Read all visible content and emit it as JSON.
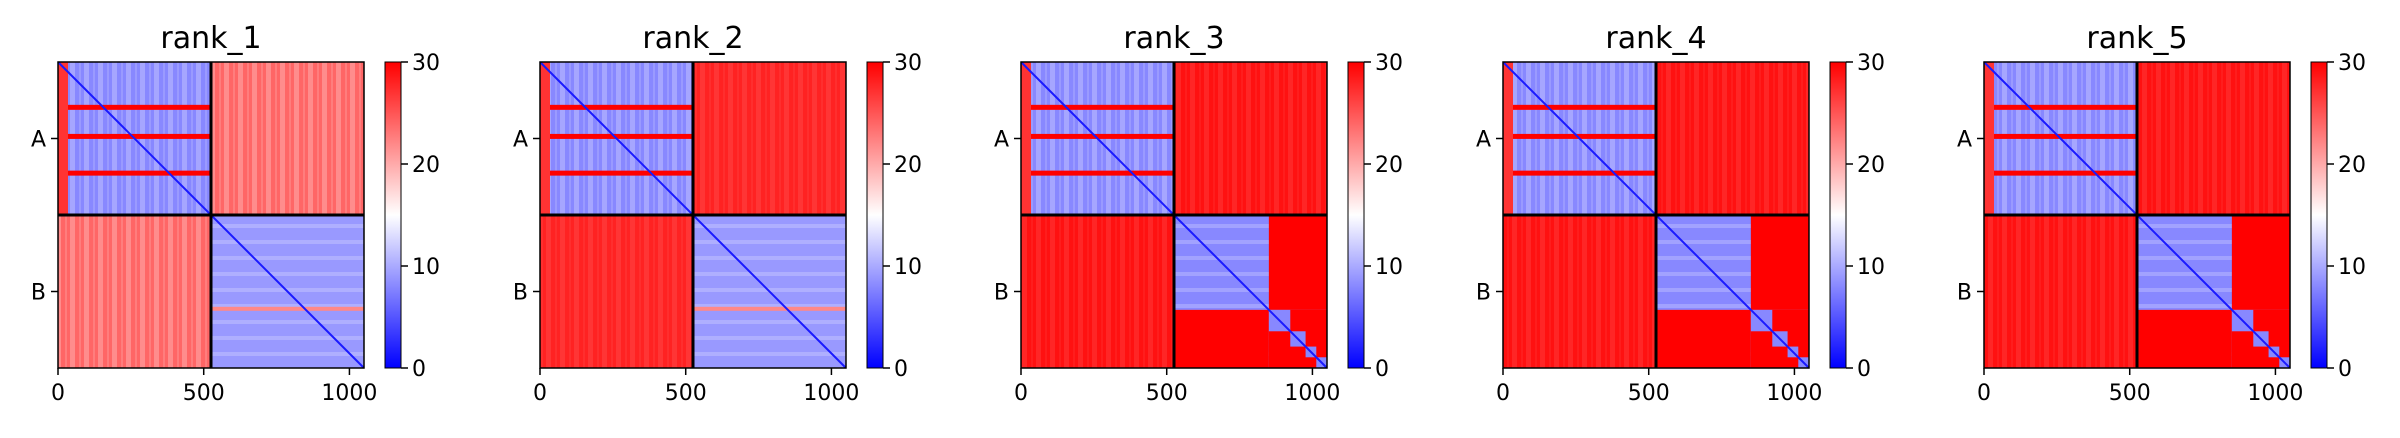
{
  "chart_data": {
    "type": "heatmap",
    "colormap": {
      "low": "#0000ff",
      "mid": "#ffffff",
      "high": "#ff0000",
      "vmin": 0,
      "vmax": 30
    },
    "colorbar_ticks": [
      "0",
      "10",
      "20",
      "30"
    ],
    "x_ticks": [
      {
        "label": "0",
        "value": 0
      },
      {
        "label": "500",
        "value": 500
      },
      {
        "label": "1000",
        "value": 1000
      }
    ],
    "x_range": [
      0,
      1050
    ],
    "chain_boundary": 525,
    "chain_labels": [
      "A",
      "B"
    ],
    "panels": [
      {
        "title": "rank_1",
        "intra_A": 8,
        "intra_B": 9,
        "inter": 24,
        "B_tail_break": false
      },
      {
        "title": "rank_2",
        "intra_A": 8,
        "intra_B": 9,
        "inter": 28,
        "B_tail_break": false
      },
      {
        "title": "rank_3",
        "intra_A": 8,
        "intra_B": 8,
        "inter": 29,
        "B_tail_break": true
      },
      {
        "title": "rank_4",
        "intra_A": 8,
        "intra_B": 8,
        "inter": 29,
        "B_tail_break": true
      },
      {
        "title": "rank_5",
        "intra_A": 8,
        "intra_B": 8,
        "inter": 29,
        "B_tail_break": true
      }
    ]
  }
}
